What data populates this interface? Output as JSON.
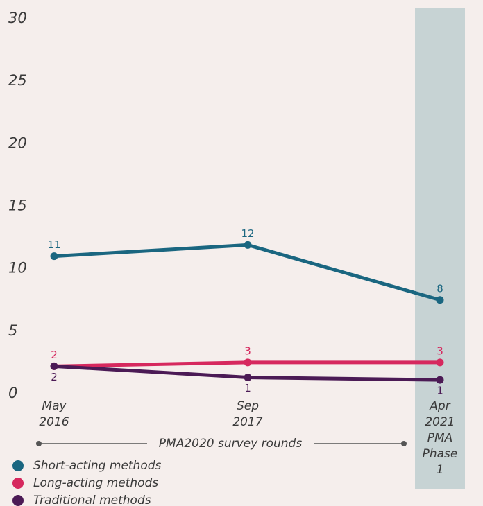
{
  "chart_data": {
    "type": "line",
    "categories": [
      "May 2016",
      "Sep 2017",
      "Apr 2021 PMA Phase 1"
    ],
    "series": [
      {
        "name": "Short-acting methods",
        "color": "#1a6680",
        "values": [
          11,
          11.9,
          7.5
        ],
        "value_labels": [
          "11",
          "12",
          "8"
        ]
      },
      {
        "name": "Long-acting methods",
        "color": "#d6285e",
        "values": [
          2.2,
          2.5,
          2.5
        ],
        "value_labels": [
          "2",
          "3",
          "3"
        ]
      },
      {
        "name": "Traditional methods",
        "color": "#4b1a55",
        "values": [
          2.2,
          1.3,
          1.1
        ],
        "value_labels": [
          "2",
          "1",
          "1"
        ]
      }
    ],
    "ylim": [
      0,
      30
    ],
    "yticks": [
      0,
      5,
      10,
      15,
      20,
      25,
      30
    ],
    "annotation": "PMA2020 survey rounds",
    "highlight_color": "#c7d3d4",
    "legend": "bottom-left"
  }
}
